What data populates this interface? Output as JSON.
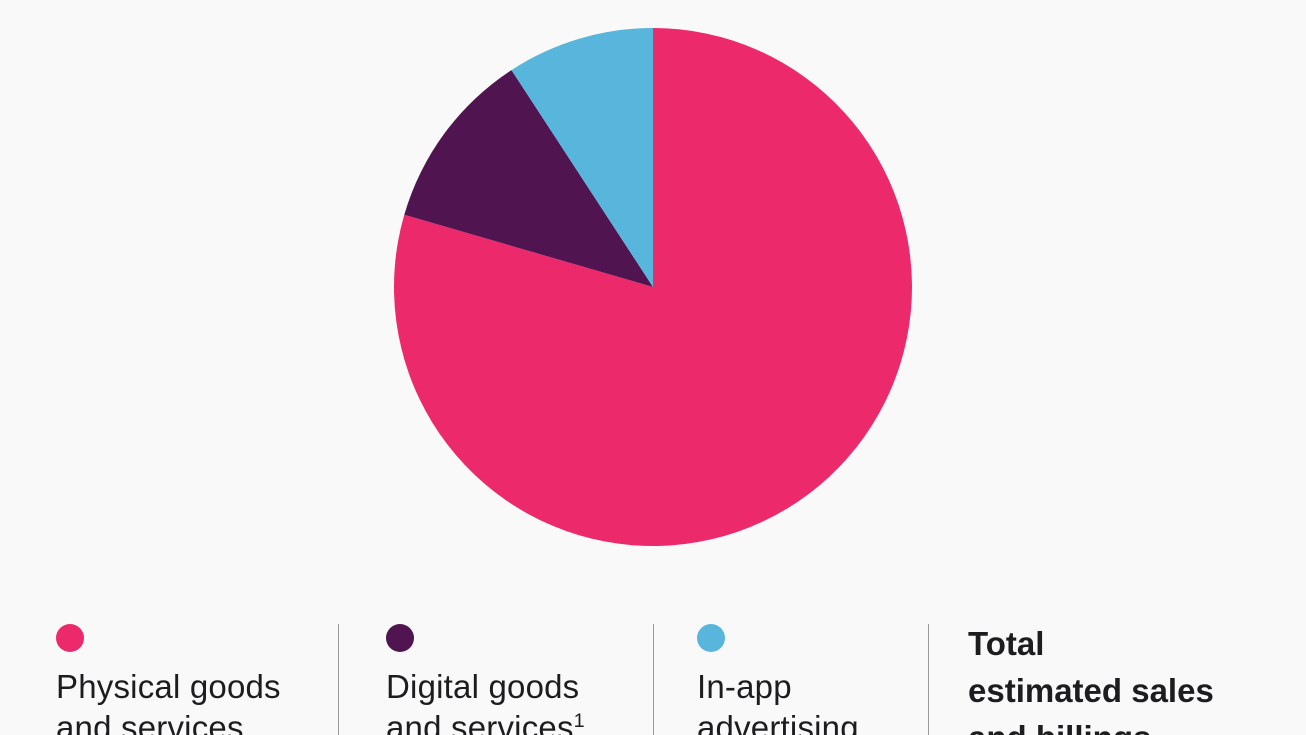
{
  "chart_data": {
    "type": "pie",
    "slices": [
      {
        "name": "Physical goods and services",
        "value": 79.5,
        "color": "#ec296b"
      },
      {
        "name": "Digital goods and services",
        "value": 11.3,
        "color": "#501450"
      },
      {
        "name": "In-app advertising",
        "value": 9.2,
        "color": "#58b6dc"
      }
    ]
  },
  "legend": {
    "items": [
      {
        "line1": "Physical goods",
        "line2": "and services",
        "footnote": ""
      },
      {
        "line1": "Digital goods",
        "line2": "and services",
        "footnote": "1"
      },
      {
        "line1": "In-app",
        "line2": "advertising",
        "footnote": ""
      }
    ],
    "total": {
      "line1": "Total",
      "line2": "estimated sales",
      "line3": "and billings"
    }
  }
}
